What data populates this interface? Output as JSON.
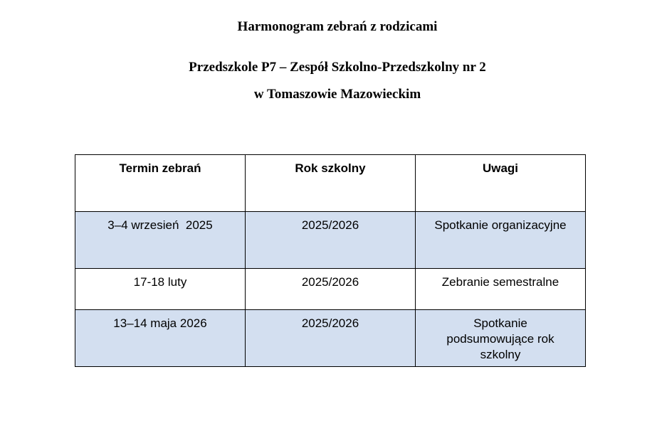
{
  "document": {
    "title": "Harmonogram zebrań z rodzicami",
    "subtitle_line1": "Przedszkole P7 – Zespół Szkolno-Przedszkolny nr 2",
    "subtitle_line2": "w Tomaszowie Mazowieckim"
  },
  "table": {
    "headers": [
      "Termin zebrań",
      "Rok szkolny",
      "Uwagi"
    ],
    "rows": [
      [
        "3–4 wrzesień  2025",
        "2025/2026",
        "Spotkanie organizacyjne"
      ],
      [
        "17-18 luty",
        "2025/2026",
        "Zebranie semestralne"
      ],
      [
        "13–14 maja 2026",
        "2025/2026",
        "Spotkanie podsumowujące rok szkolny"
      ]
    ],
    "shaded_color": "#d3dff0"
  }
}
